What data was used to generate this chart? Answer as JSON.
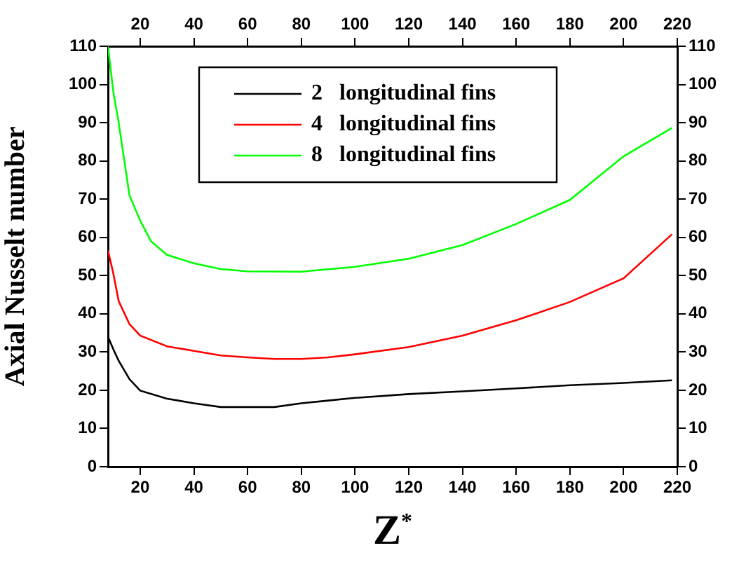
{
  "chart_data": {
    "type": "line",
    "xlabel": "Z$^{*}$",
    "ylabel": "Axial Nusselt number",
    "xlim": [
      8,
      220
    ],
    "xticks": [
      20,
      40,
      60,
      80,
      100,
      120,
      140,
      160,
      180,
      200,
      220
    ],
    "x2lim": [
      8,
      220
    ],
    "x2ticks": [
      20,
      40,
      60,
      80,
      100,
      120,
      140,
      160,
      180,
      200,
      220
    ],
    "ylim": [
      0,
      110
    ],
    "yticks": [
      0,
      10,
      20,
      30,
      40,
      50,
      60,
      70,
      80,
      90,
      100,
      110
    ],
    "y2lim": [
      0,
      110
    ],
    "y2ticks": [
      0,
      10,
      20,
      30,
      40,
      50,
      60,
      70,
      80,
      90,
      100,
      110
    ],
    "legend": "top",
    "grid": false,
    "marker": "none",
    "line_style": "solid",
    "series": [
      {
        "name": "2   longitudinal fins",
        "color": "#000000",
        "x": [
          8,
          10,
          12,
          16,
          20,
          30,
          40,
          50,
          60,
          70,
          80,
          90,
          100,
          120,
          140,
          160,
          180,
          200,
          218
        ],
        "values": [
          34,
          30.7,
          27.7,
          22.9,
          19.9,
          17.8,
          16.6,
          15.6,
          15.6,
          15.6,
          16.6,
          17.3,
          18,
          19,
          19.7,
          20.5,
          21.3,
          21.9,
          22.6
        ]
      },
      {
        "name": "4   longitudinal fins",
        "color": "#ff0000",
        "x": [
          8,
          10,
          12,
          16,
          20,
          30,
          40,
          50,
          60,
          70,
          80,
          90,
          100,
          120,
          140,
          160,
          180,
          200,
          218
        ],
        "values": [
          56.6,
          50.5,
          43.3,
          37.3,
          34.3,
          31.5,
          30.3,
          29.1,
          28.6,
          28.2,
          28.2,
          28.6,
          29.4,
          31.3,
          34.3,
          38.3,
          43.1,
          49.3,
          60.8
        ]
      },
      {
        "name": "8   longitudinal fins",
        "color": "#00ff00",
        "x": [
          8,
          10,
          12,
          16,
          20,
          24,
          30,
          40,
          50,
          60,
          80,
          100,
          120,
          140,
          160,
          180,
          200,
          218
        ],
        "values": [
          110,
          98,
          90,
          71,
          64.4,
          59,
          55.4,
          53.2,
          51.7,
          51.1,
          51,
          52.3,
          54.4,
          58,
          63.5,
          69.8,
          81.2,
          88.6
        ]
      }
    ]
  }
}
